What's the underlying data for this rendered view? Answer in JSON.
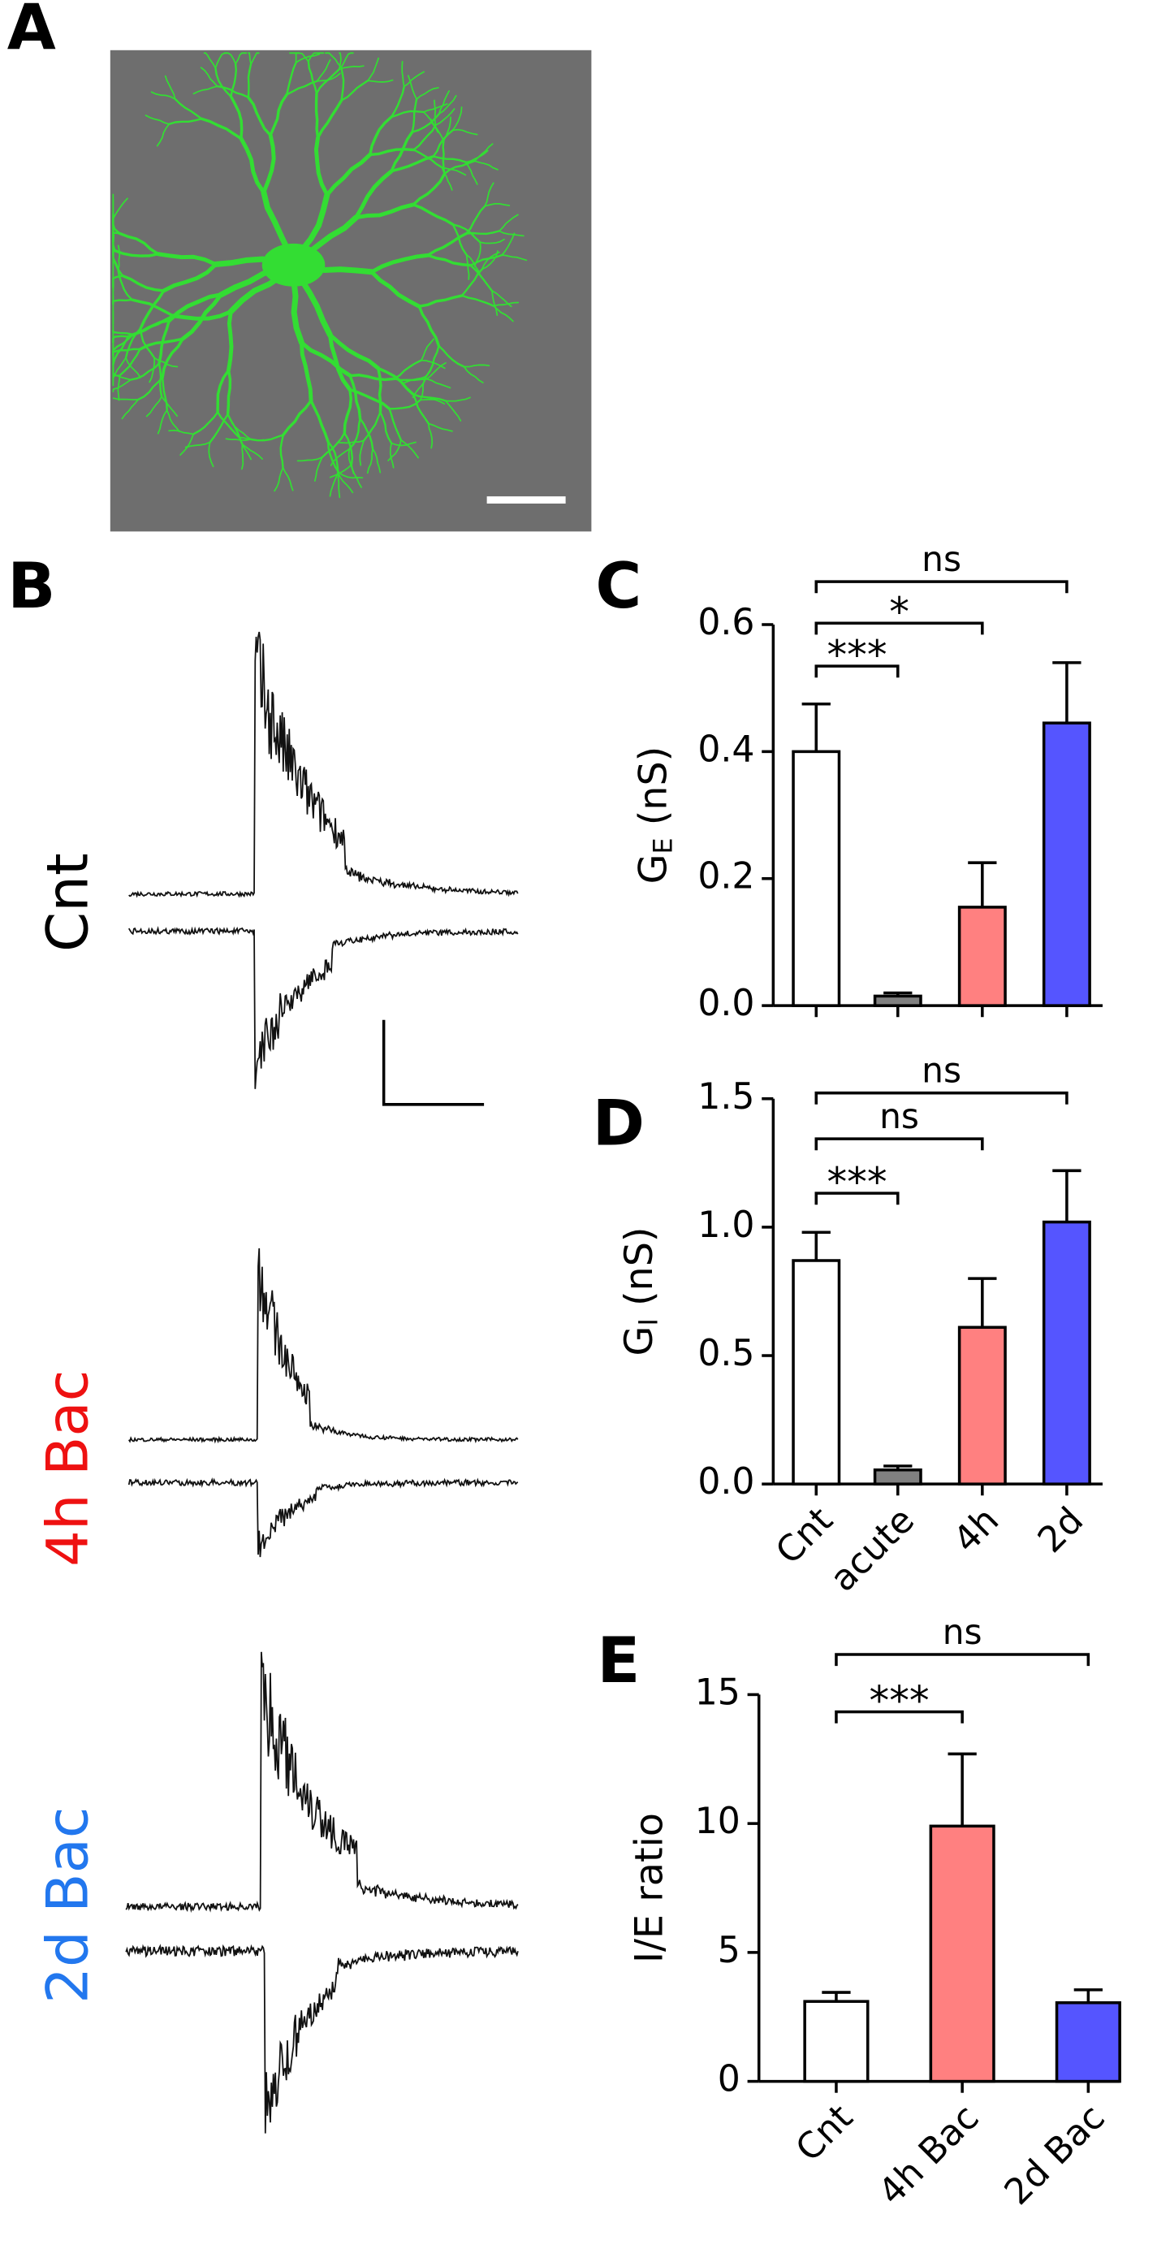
{
  "panel_labels": [
    "A",
    "B",
    "C",
    "D",
    "E"
  ],
  "trace_labels": [
    {
      "text": "Cnt",
      "color": "#000000"
    },
    {
      "text": "4h Bac",
      "color": "#ee1111"
    },
    {
      "text": "2d Bac",
      "color": "#2277ee"
    }
  ],
  "chart_data": [
    {
      "type": "bar",
      "ylabel_parts": [
        "G",
        "E",
        " (nS)"
      ],
      "categories": [
        null,
        null,
        null,
        null
      ],
      "values": [
        0.4,
        0.015,
        0.155,
        0.445
      ],
      "errors": [
        0.075,
        0.005,
        0.07,
        0.095
      ],
      "colors": [
        "#ffffff",
        "#808080",
        "#ff8080",
        "#5555ff"
      ],
      "ylim": [
        0,
        0.6
      ],
      "yticks": [
        {
          "value": 0,
          "label": "0.0"
        },
        0.2,
        0.4,
        0.6
      ],
      "annotations": [
        {
          "from": 0,
          "to": 1,
          "label": "***"
        },
        {
          "from": 0,
          "to": 2,
          "label": "*"
        },
        {
          "from": 0,
          "to": 3,
          "label": "ns"
        }
      ]
    },
    {
      "type": "bar",
      "ylabel_parts": [
        "G",
        "I",
        " (nS)"
      ],
      "categories": [
        "Cnt",
        "acute",
        "4h",
        "2d"
      ],
      "values": [
        0.87,
        0.055,
        0.61,
        1.02
      ],
      "errors": [
        0.11,
        0.015,
        0.19,
        0.2
      ],
      "colors": [
        "#ffffff",
        "#808080",
        "#ff8080",
        "#5555ff"
      ],
      "ylim": [
        0,
        1.5
      ],
      "yticks": [
        {
          "value": 0,
          "label": "0.0"
        },
        0.5,
        {
          "value": 1,
          "label": "1.0"
        },
        1.5
      ],
      "annotations": [
        {
          "from": 0,
          "to": 1,
          "label": "***"
        },
        {
          "from": 0,
          "to": 2,
          "label": "ns"
        },
        {
          "from": 0,
          "to": 3,
          "label": "ns"
        }
      ]
    },
    {
      "type": "bar",
      "ylabel_parts": [
        "I/E ratio"
      ],
      "categories": [
        "Cnt",
        "4h Bac",
        "2d Bac"
      ],
      "values": [
        3.1,
        9.9,
        3.05
      ],
      "errors": [
        0.35,
        2.8,
        0.5
      ],
      "colors": [
        "#ffffff",
        "#ff8080",
        "#5555ff"
      ],
      "ylim": [
        0,
        15
      ],
      "yticks": [
        0,
        5,
        10,
        15
      ],
      "annotations": [
        {
          "from": 0,
          "to": 1,
          "label": "***"
        },
        {
          "from": 0,
          "to": 2,
          "label": "ns"
        }
      ]
    }
  ]
}
